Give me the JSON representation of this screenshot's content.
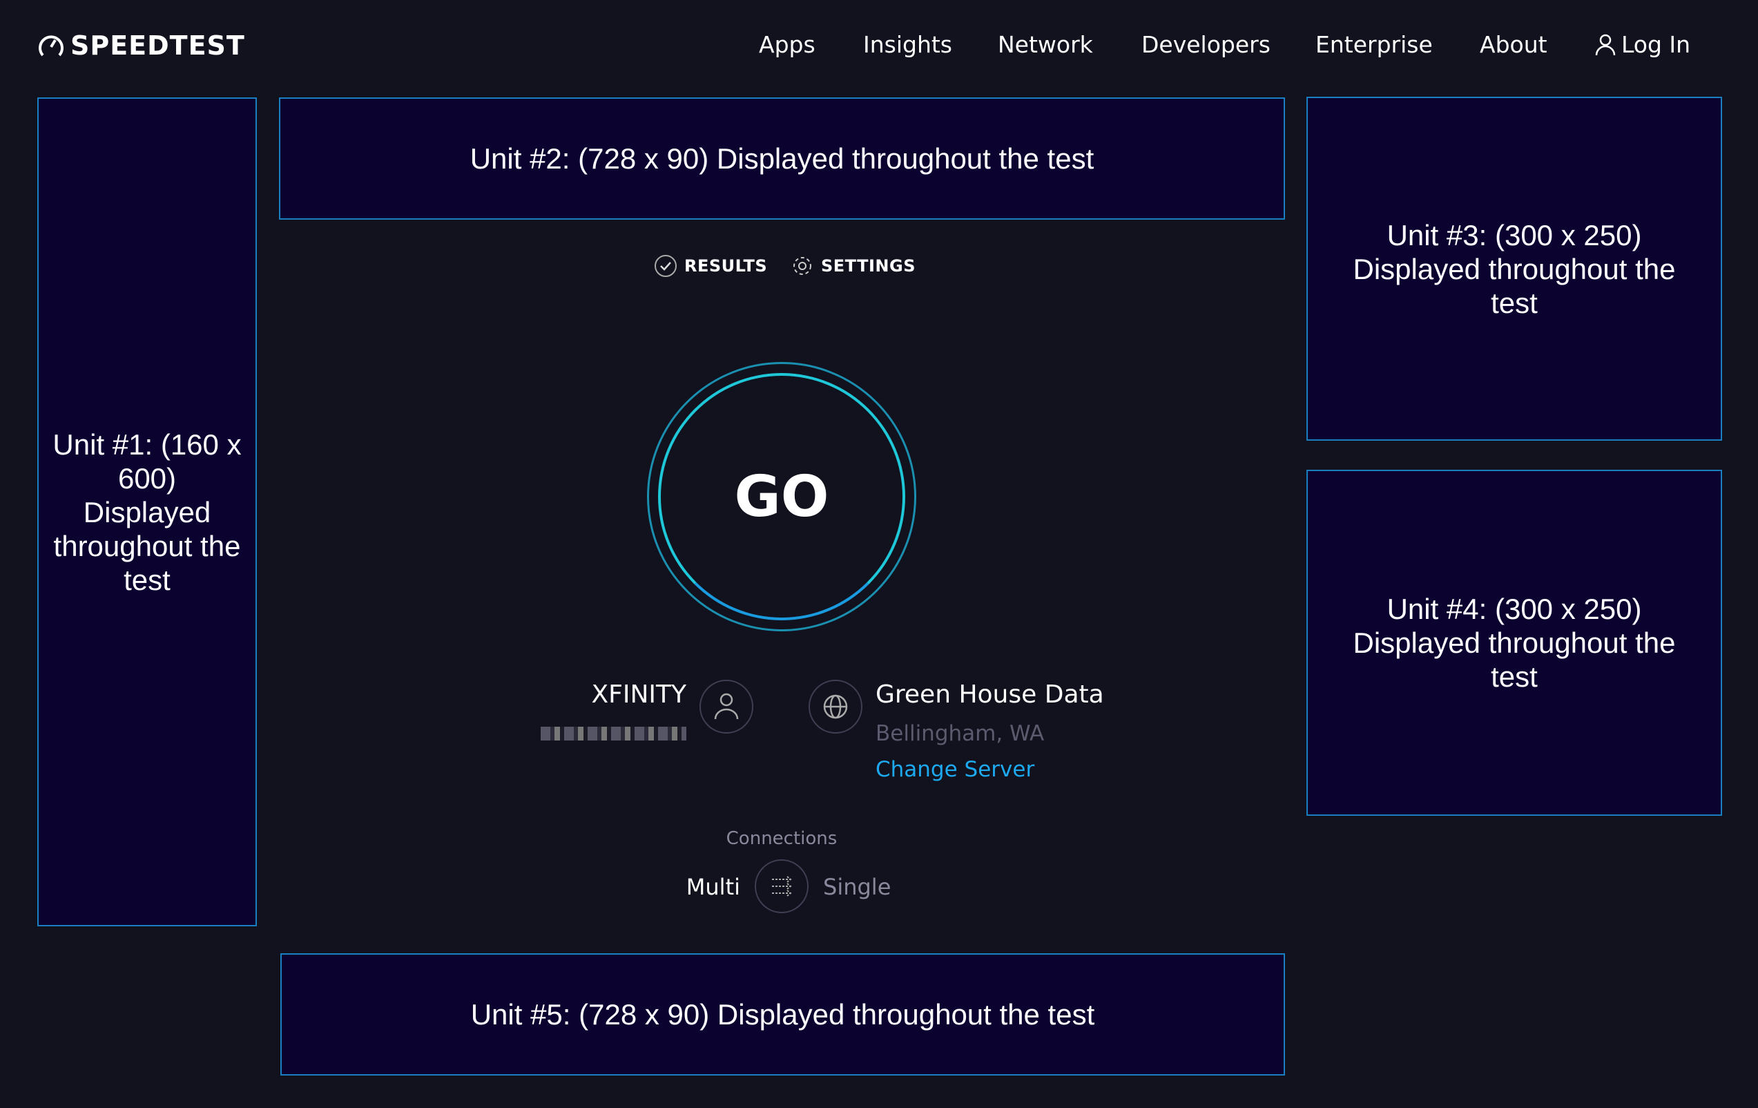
{
  "header": {
    "logo": "SPEEDTEST",
    "nav": [
      "Apps",
      "Insights",
      "Network",
      "Developers",
      "Enterprise",
      "About"
    ],
    "login": "Log In"
  },
  "ads": {
    "unit1": "Unit #1: (160 x 600) Displayed throughout the test",
    "unit2": "Unit #2: (728 x 90) Displayed throughout the test",
    "unit3": "Unit #3: (300 x 250) Displayed throughout the test",
    "unit4": "Unit #4: (300 x 250) Displayed throughout the test",
    "unit5": "Unit #5: (728 x 90) Displayed throughout the test"
  },
  "tabs": {
    "results": "RESULTS",
    "settings": "SETTINGS"
  },
  "go": "GO",
  "isp": {
    "name": "XFINITY"
  },
  "server": {
    "name": "Green House Data",
    "location": "Bellingham, WA",
    "change": "Change Server"
  },
  "connections": {
    "label": "Connections",
    "multi": "Multi",
    "single": "Single"
  },
  "colors": {
    "background": "#11121d",
    "ad_fill": "#0b0230",
    "ad_border": "#1a7fc0",
    "link": "#1da9f0",
    "go_ring": "#1fc8d8"
  }
}
